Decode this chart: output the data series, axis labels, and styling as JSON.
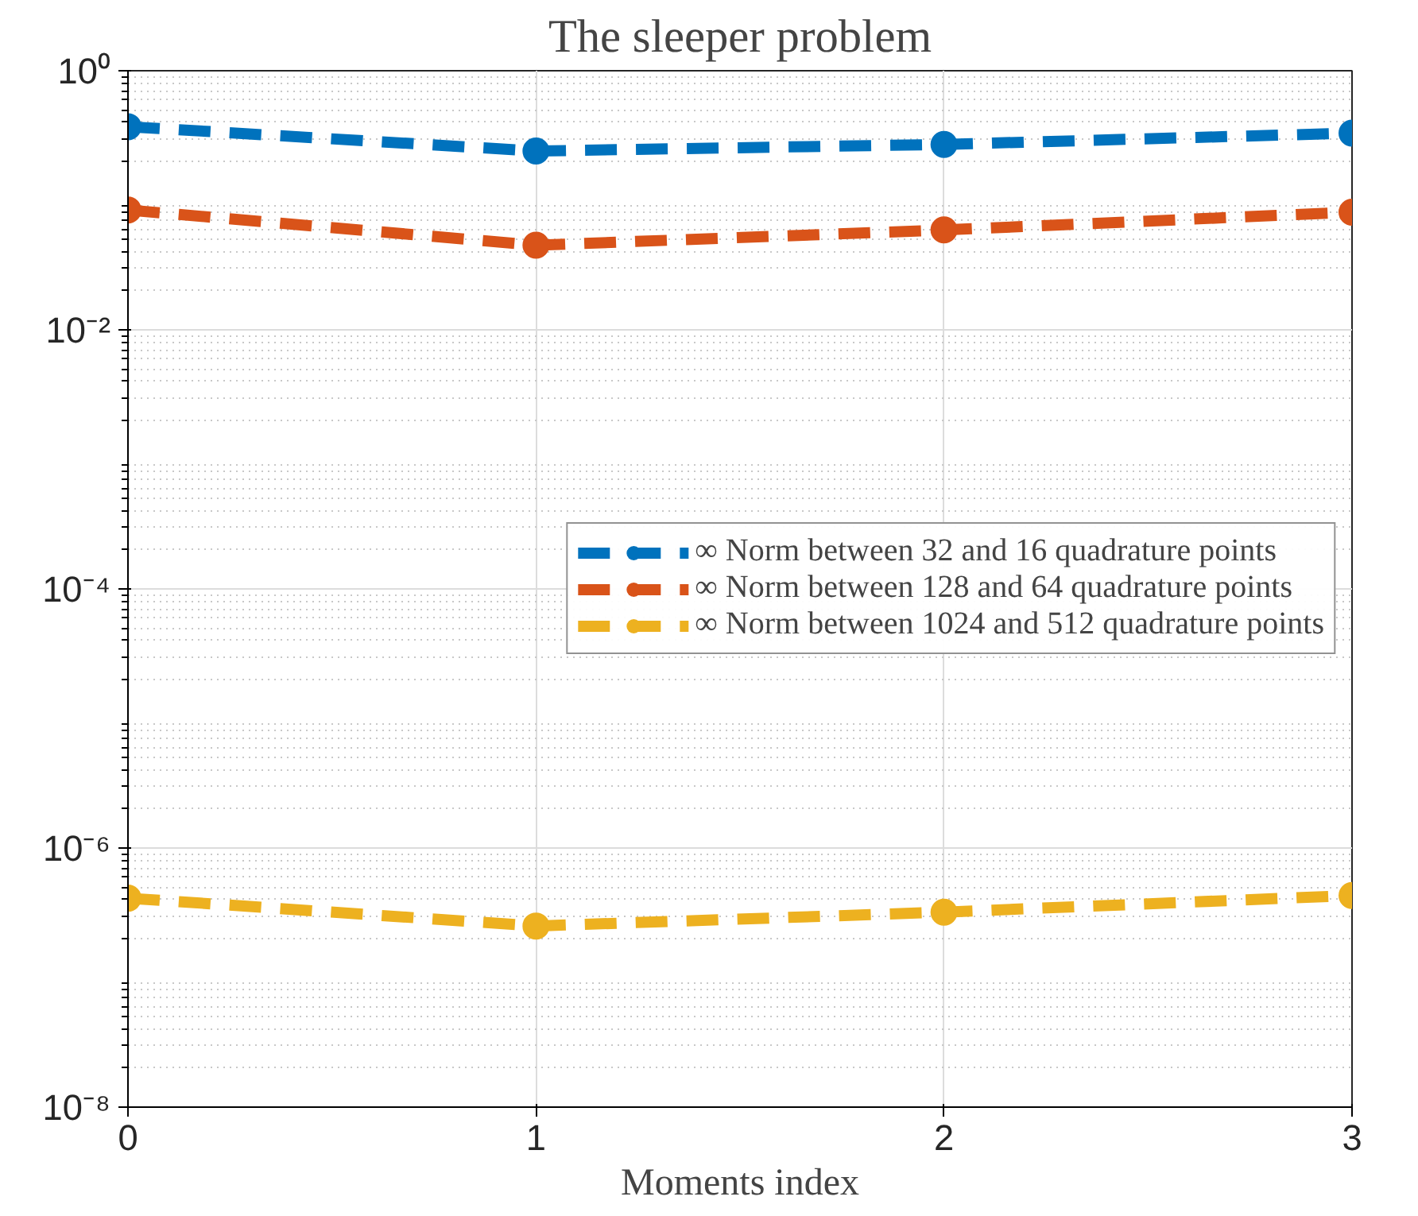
{
  "chart_data": {
    "type": "line",
    "title": "The sleeper problem",
    "xlabel": "Moments index",
    "x": [
      0,
      1,
      2,
      3
    ],
    "series": [
      {
        "name": "∞ Norm between 32 and 16 quadrature points",
        "color": "#0072bd",
        "values": [
          0.37,
          0.24,
          0.27,
          0.33
        ]
      },
      {
        "name": "∞ Norm between 128 and 64 quadrature points",
        "color": "#d95319",
        "values": [
          0.084,
          0.045,
          0.059,
          0.081
        ]
      },
      {
        "name": "∞ Norm between 1024 and 512 quadrature points",
        "color": "#edb120",
        "values": [
          4.1e-07,
          2.5e-07,
          3.2e-07,
          4.3e-07
        ]
      }
    ],
    "log": "y",
    "xlim": [
      0,
      3
    ],
    "xticks": [
      0,
      1,
      2,
      3
    ],
    "ylim": [
      1e-08,
      1
    ],
    "yticks": [
      {
        "value": 1e-08,
        "label": "10⁻⁸"
      },
      {
        "value": 1e-06,
        "label": "10⁻⁶"
      },
      {
        "value": 0.0001,
        "label": "10⁻⁴"
      },
      {
        "value": 0.01,
        "label": "10⁻²"
      },
      {
        "value": 1,
        "label": "10⁰"
      }
    ],
    "grid": true,
    "legend": "right",
    "marker": "circle",
    "line_style": "dashed"
  }
}
